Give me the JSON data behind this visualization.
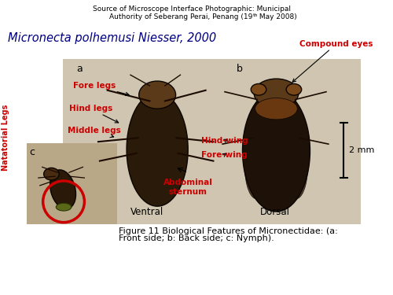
{
  "bg_color": "#ffffff",
  "source_line1": "Source of Microscope Interface Photographic: Municipal",
  "source_line2_pre": "Authority of Seberang Perai, Penang (19",
  "source_superscript": "th",
  "source_line2_post": " May 2008)",
  "species_name": "Micronecta polhemusi Niesser, 2000",
  "label_a": "a",
  "label_b": "b",
  "label_c": "c",
  "natatorial_legs": "Natatorial Legs",
  "fore_legs": "Fore legs",
  "hind_legs": "Hind legs",
  "middle_legs": "Middle legs",
  "compound_eyes": "Compound eyes",
  "hind_wing": "Hind-wing",
  "fore_wing": "Fore-wing",
  "abdominal_sternum": "Abdominal\nsternum",
  "ventral": "Ventral",
  "dorsal": "Dorsal",
  "scale_bar": "2 mm",
  "figure_caption_line1": "Figure 11 Biological Features of Micronectidae: (a:",
  "figure_caption_line2": "Front side; b: Back side; c: Nymph).",
  "photo_bg": "#cfc5b0",
  "nymph_bg": "#b8a888",
  "red_color": "#cc0000",
  "black_color": "#000000",
  "dark_blue": "#000080",
  "insect_dark": "#2a1a0a",
  "insect_head": "#5a3a18",
  "insect_wing": "#4a3018",
  "leg_color": "#1a0a00"
}
